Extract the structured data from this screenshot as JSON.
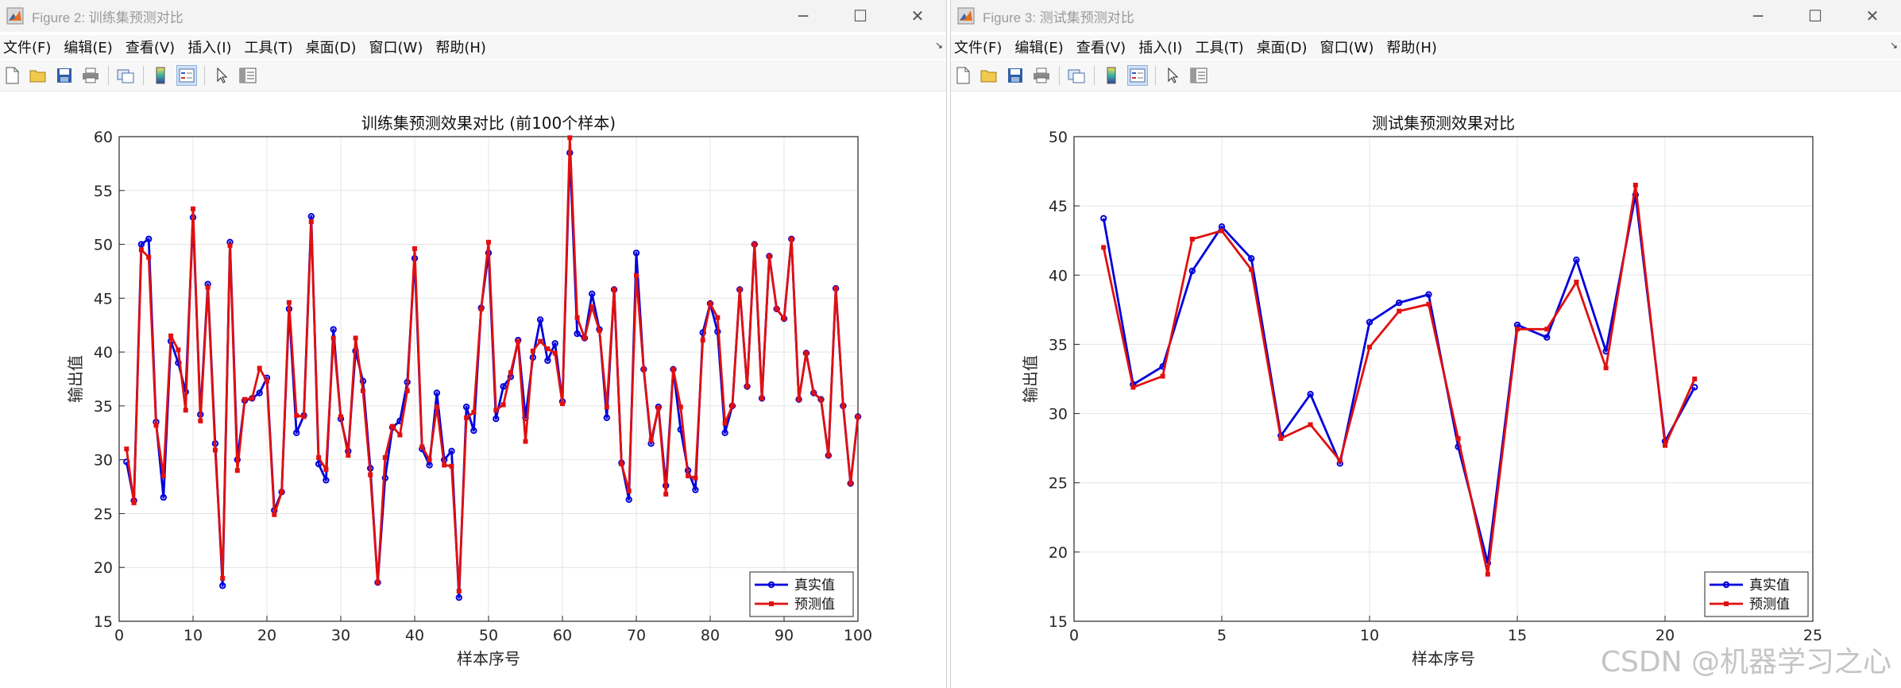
{
  "colors": {
    "true": "#0000dd",
    "pred": "#e01010"
  },
  "icons": [
    "new-file-icon",
    "open-folder-icon",
    "save-icon",
    "print-icon",
    "link-plot-icon",
    "colorbar-icon",
    "legend-icon",
    "pointer-icon",
    "property-inspector-icon"
  ],
  "windows": [
    {
      "title": "Figure 2: 训练集预测对比",
      "menus": [
        "文件(F)",
        "编辑(E)",
        "查看(V)",
        "插入(I)",
        "工具(T)",
        "桌面(D)",
        "窗口(W)",
        "帮助(H)"
      ],
      "chart_data": {
        "type": "line",
        "title": "训练集预测效果对比 (前100个样本)",
        "xlabel": "样本序号",
        "ylabel": "输出值",
        "xlim": [
          0,
          100
        ],
        "ylim": [
          15,
          60
        ],
        "xticks": [
          0,
          10,
          20,
          30,
          40,
          50,
          60,
          70,
          80,
          90,
          100
        ],
        "yticks": [
          15,
          20,
          25,
          30,
          35,
          40,
          45,
          50,
          55,
          60
        ],
        "grid": true,
        "legend_position": "bottom-right",
        "series": [
          {
            "name": "真实值",
            "marker": "circle",
            "x": [
              1,
              2,
              3,
              4,
              5,
              6,
              7,
              8,
              9,
              10,
              11,
              12,
              13,
              14,
              15,
              16,
              17,
              18,
              19,
              20,
              21,
              22,
              23,
              24,
              25,
              26,
              27,
              28,
              29,
              30,
              31,
              32,
              33,
              34,
              35,
              36,
              37,
              38,
              39,
              40,
              41,
              42,
              43,
              44,
              45,
              46,
              47,
              48,
              49,
              50,
              51,
              52,
              53,
              54,
              55,
              56,
              57,
              58,
              59,
              60,
              61,
              62,
              63,
              64,
              65,
              66,
              67,
              68,
              69,
              70,
              71,
              72,
              73,
              74,
              75,
              76,
              77,
              78,
              79,
              80,
              81,
              82,
              83,
              84,
              85,
              86,
              87,
              88,
              89,
              90,
              91,
              92,
              93,
              94,
              95,
              96,
              97,
              98,
              99,
              100
            ],
            "values": [
              29.8,
              26.2,
              50.0,
              50.5,
              33.5,
              26.5,
              41.0,
              39.0,
              36.3,
              52.5,
              34.2,
              46.3,
              31.5,
              18.3,
              50.2,
              30.0,
              35.5,
              35.7,
              36.2,
              37.6,
              25.3,
              27.0,
              44.0,
              32.5,
              34.1,
              52.6,
              29.6,
              28.1,
              42.1,
              33.8,
              30.8,
              40.1,
              37.3,
              29.2,
              18.6,
              28.3,
              33.0,
              33.6,
              37.2,
              48.7,
              31.0,
              29.5,
              36.2,
              30.0,
              30.8,
              17.2,
              34.9,
              32.7,
              44.1,
              49.2,
              33.8,
              36.8,
              37.7,
              41.1,
              33.9,
              39.5,
              43.0,
              39.2,
              40.8,
              35.4,
              58.5,
              41.7,
              41.3,
              45.4,
              42.1,
              33.9,
              45.8,
              29.7,
              26.3,
              49.2,
              38.4,
              31.5,
              34.9,
              27.6,
              38.4,
              32.8,
              29.0,
              27.2,
              41.8,
              44.5,
              41.9,
              32.5,
              35.0,
              45.8,
              36.8,
              50.0,
              35.7,
              48.9,
              44.0,
              43.1,
              50.5,
              35.6,
              39.9,
              36.2,
              35.6,
              30.4,
              45.9,
              35.0,
              27.8,
              34.0
            ]
          },
          {
            "name": "预测值",
            "marker": "square",
            "x": [
              1,
              2,
              3,
              4,
              5,
              6,
              7,
              8,
              9,
              10,
              11,
              12,
              13,
              14,
              15,
              16,
              17,
              18,
              19,
              20,
              21,
              22,
              23,
              24,
              25,
              26,
              27,
              28,
              29,
              30,
              31,
              32,
              33,
              34,
              35,
              36,
              37,
              38,
              39,
              40,
              41,
              42,
              43,
              44,
              45,
              46,
              47,
              48,
              49,
              50,
              51,
              52,
              53,
              54,
              55,
              56,
              57,
              58,
              59,
              60,
              61,
              62,
              63,
              64,
              65,
              66,
              67,
              68,
              69,
              70,
              71,
              72,
              73,
              74,
              75,
              76,
              77,
              78,
              79,
              80,
              81,
              82,
              83,
              84,
              85,
              86,
              87,
              88,
              89,
              90,
              91,
              92,
              93,
              94,
              95,
              96,
              97,
              98,
              99,
              100
            ],
            "values": [
              31.0,
              26.0,
              49.5,
              48.8,
              33.2,
              28.5,
              41.5,
              40.2,
              34.6,
              53.3,
              33.6,
              46.0,
              30.9,
              19.0,
              49.9,
              29.0,
              35.6,
              35.7,
              38.5,
              37.3,
              24.9,
              27.0,
              44.6,
              34.1,
              34.0,
              52.1,
              30.2,
              29.1,
              41.3,
              34.0,
              30.4,
              41.3,
              36.4,
              28.6,
              18.6,
              30.2,
              33.1,
              32.3,
              36.4,
              49.6,
              31.2,
              30.0,
              34.9,
              29.5,
              29.4,
              17.8,
              33.9,
              34.4,
              44.0,
              50.2,
              34.6,
              35.1,
              38.1,
              41.0,
              31.7,
              40.1,
              41.0,
              40.3,
              39.9,
              35.2,
              59.9,
              43.2,
              41.3,
              44.2,
              42.0,
              34.9,
              45.8,
              29.6,
              27.1,
              47.1,
              38.4,
              31.8,
              34.8,
              26.8,
              38.4,
              34.9,
              28.5,
              28.3,
              41.1,
              44.5,
              43.2,
              33.4,
              35.0,
              45.8,
              36.8,
              50.0,
              35.7,
              48.9,
              44.0,
              43.1,
              50.5,
              35.6,
              39.9,
              36.2,
              35.6,
              30.4,
              45.9,
              35.0,
              27.8,
              34.0
            ]
          }
        ]
      }
    },
    {
      "title": "Figure 3: 测试集预测对比",
      "menus": [
        "文件(F)",
        "编辑(E)",
        "查看(V)",
        "插入(I)",
        "工具(T)",
        "桌面(D)",
        "窗口(W)",
        "帮助(H)"
      ],
      "chart_data": {
        "type": "line",
        "title": "测试集预测效果对比",
        "xlabel": "样本序号",
        "ylabel": "输出值",
        "xlim": [
          0,
          25
        ],
        "ylim": [
          15,
          50
        ],
        "xticks": [
          0,
          5,
          10,
          15,
          20,
          25
        ],
        "yticks": [
          15,
          20,
          25,
          30,
          35,
          40,
          45,
          50
        ],
        "grid": true,
        "legend_position": "bottom-right",
        "series": [
          {
            "name": "真实值",
            "marker": "circle",
            "x": [
              1,
              2,
              3,
              4,
              5,
              6,
              7,
              8,
              9,
              10,
              11,
              12,
              13,
              14,
              15,
              16,
              17,
              18,
              19,
              20,
              21
            ],
            "values": [
              44.1,
              32.1,
              33.4,
              40.3,
              43.5,
              41.2,
              28.4,
              31.4,
              26.4,
              36.6,
              38.0,
              38.6,
              27.6,
              19.2,
              36.4,
              35.5,
              41.1,
              34.5,
              45.8,
              28.0,
              31.9
            ]
          },
          {
            "name": "预测值",
            "marker": "square",
            "x": [
              1,
              2,
              3,
              4,
              5,
              6,
              7,
              8,
              9,
              10,
              11,
              12,
              13,
              14,
              15,
              16,
              17,
              18,
              19,
              20,
              21
            ],
            "values": [
              42.0,
              31.9,
              32.7,
              42.6,
              43.2,
              40.4,
              28.2,
              29.2,
              26.6,
              34.8,
              37.4,
              37.9,
              28.2,
              18.4,
              36.1,
              36.1,
              39.5,
              33.3,
              46.5,
              27.7,
              32.5
            ]
          }
        ]
      }
    }
  ],
  "watermark": "CSDN @机器学习之心"
}
